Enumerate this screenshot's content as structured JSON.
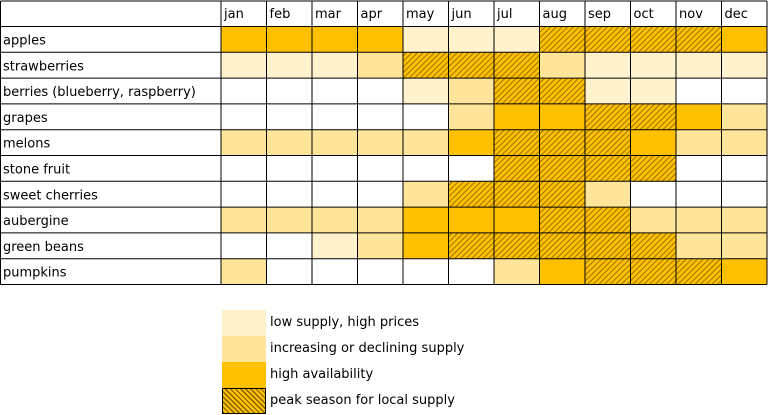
{
  "chart_data": {
    "type": "heatmap",
    "months": [
      "jan",
      "feb",
      "mar",
      "apr",
      "may",
      "jun",
      "jul",
      "aug",
      "sep",
      "oct",
      "nov",
      "dec"
    ],
    "rows": [
      {
        "label": "apples",
        "levels": [
          3,
          3,
          3,
          3,
          1,
          1,
          1,
          4,
          4,
          4,
          4,
          3
        ]
      },
      {
        "label": "strawberries",
        "levels": [
          1,
          1,
          1,
          2,
          4,
          4,
          4,
          2,
          1,
          1,
          1,
          1
        ]
      },
      {
        "label": "berries (blueberry, raspberry)",
        "levels": [
          0,
          0,
          0,
          0,
          1,
          2,
          4,
          4,
          1,
          1,
          0,
          0
        ]
      },
      {
        "label": "grapes",
        "levels": [
          0,
          0,
          0,
          0,
          0,
          2,
          3,
          3,
          4,
          4,
          3,
          2
        ]
      },
      {
        "label": "melons",
        "levels": [
          2,
          2,
          2,
          2,
          2,
          3,
          4,
          4,
          4,
          3,
          2,
          2
        ]
      },
      {
        "label": "stone fruit",
        "levels": [
          0,
          0,
          0,
          0,
          0,
          0,
          4,
          4,
          4,
          4,
          0,
          0
        ]
      },
      {
        "label": "sweet cherries",
        "levels": [
          0,
          0,
          0,
          0,
          2,
          4,
          4,
          4,
          2,
          0,
          0,
          0
        ]
      },
      {
        "label": "aubergine",
        "levels": [
          2,
          2,
          2,
          2,
          3,
          3,
          3,
          4,
          4,
          2,
          2,
          2
        ]
      },
      {
        "label": "green beans",
        "levels": [
          0,
          0,
          1,
          2,
          3,
          4,
          4,
          4,
          4,
          4,
          2,
          2
        ]
      },
      {
        "label": "pumpkins",
        "levels": [
          2,
          0,
          0,
          0,
          0,
          0,
          2,
          3,
          4,
          4,
          4,
          3
        ]
      }
    ],
    "legend": [
      {
        "level": 1,
        "label": "low supply, high prices"
      },
      {
        "level": 2,
        "label": "increasing or declining supply"
      },
      {
        "level": 3,
        "label": "high availability"
      },
      {
        "level": 4,
        "label": "peak season for local supply"
      }
    ],
    "level_colors": {
      "0": "#ffffff",
      "1": "#fff2cc",
      "2": "#ffe599",
      "3": "#ffc000",
      "4": "#ffc000"
    },
    "hatch_color": "#7f6000",
    "grid_color": "#000000"
  }
}
